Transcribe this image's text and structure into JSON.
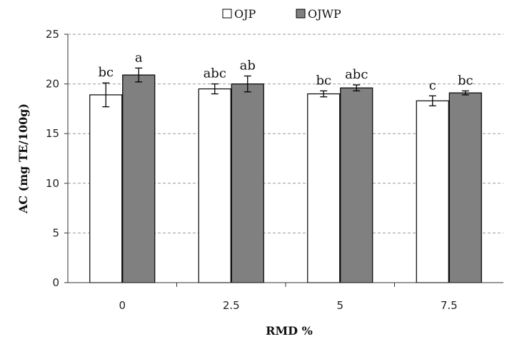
{
  "chart_data": {
    "type": "bar",
    "title": "",
    "xlabel": "RMD %",
    "ylabel": "AC (mg TE/100g)",
    "ylim": [
      0,
      25
    ],
    "yticks": [
      0,
      5,
      10,
      15,
      20,
      25
    ],
    "grid": true,
    "legend_position": "top",
    "categories": [
      "0",
      "2.5",
      "5",
      "7.5"
    ],
    "series": [
      {
        "name": "OJP",
        "color": "#ffffff",
        "values": [
          18.9,
          19.5,
          19.0,
          18.3
        ],
        "errors": [
          1.2,
          0.5,
          0.3,
          0.5
        ],
        "labels": [
          "bc",
          "abc",
          "bc",
          "c"
        ]
      },
      {
        "name": "OJWP",
        "color": "#808080",
        "values": [
          20.9,
          20.0,
          19.6,
          19.1
        ],
        "errors": [
          0.7,
          0.8,
          0.3,
          0.2
        ],
        "labels": [
          "a",
          "ab",
          "abc",
          "bc"
        ]
      }
    ]
  }
}
